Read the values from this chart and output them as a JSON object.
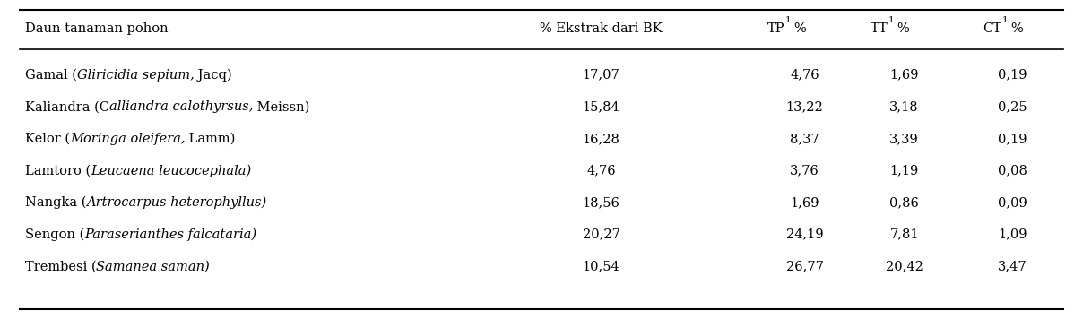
{
  "columns_h1": [
    "Daun tanaman pohon",
    "% Ekstrak dari BK",
    "TP",
    "TT",
    "CT"
  ],
  "rows": [
    {
      "col1_normal": "Gamal (",
      "col1_italic": "Gliricidia sepium,",
      "col1_normal2": " Jacq)",
      "col2": "17,07",
      "col3": "4,76",
      "col4": "1,69",
      "col5": "0,19"
    },
    {
      "col1_normal": "Kaliandra (C",
      "col1_italic": "alliandra calothyrsus,",
      "col1_normal2": " Meissn)",
      "col2": "15,84",
      "col3": "13,22",
      "col4": "3,18",
      "col5": "0,25"
    },
    {
      "col1_normal": "Kelor (",
      "col1_italic": "Moringa oleifera,",
      "col1_normal2": " Lamm)",
      "col2": "16,28",
      "col3": "8,37",
      "col4": "3,39",
      "col5": "0,19"
    },
    {
      "col1_normal": "Lamtoro (",
      "col1_italic": "Leucaena leucocephala)",
      "col1_normal2": "",
      "col2": "4,76",
      "col3": "3,76",
      "col4": "1,19",
      "col5": "0,08"
    },
    {
      "col1_normal": "Nangka (",
      "col1_italic": "Artrocarpus heterophyllus)",
      "col1_normal2": "",
      "col2": "18,56",
      "col3": "1,69",
      "col4": "0,86",
      "col5": "0,09"
    },
    {
      "col1_normal": "Sengon (",
      "col1_italic": "Paraserianthes falcataria)",
      "col1_normal2": "",
      "col2": "20,27",
      "col3": "24,19",
      "col4": "7,81",
      "col5": "1,09"
    },
    {
      "col1_normal": "Trembesi (",
      "col1_italic": "Samanea saman)",
      "col1_normal2": "",
      "col2": "10,54",
      "col3": "26,77",
      "col4": "20,42",
      "col5": "3,47"
    }
  ],
  "background_color": "#ffffff",
  "line_color": "#000000",
  "text_color": "#000000",
  "font_size": 10.5
}
